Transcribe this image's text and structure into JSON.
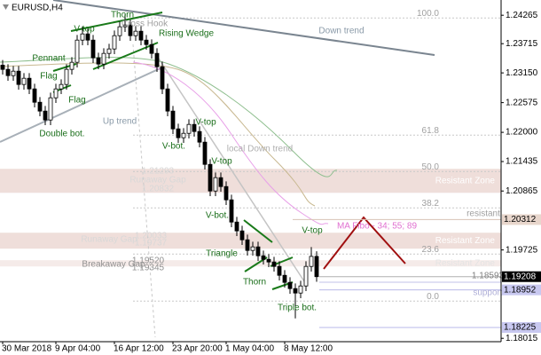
{
  "chart_data": {
    "type": "candlestick",
    "title": "EURUSD,H4",
    "categories": [
      "30 Mar 2018",
      null,
      null,
      null,
      null,
      null,
      null,
      null,
      null,
      null,
      "9 Apr 04:00",
      null,
      null,
      null,
      null,
      null,
      null,
      null,
      null,
      null,
      null,
      "16 Apr 12:00",
      null,
      null,
      null,
      null,
      null,
      null,
      null,
      null,
      null,
      null,
      "23 Apr 20:00",
      null,
      null,
      null,
      null,
      null,
      null,
      null,
      null,
      null,
      "1 May 04:00",
      null,
      null,
      null,
      null,
      null,
      null,
      null,
      null,
      null,
      null,
      "8 May 12:00",
      null,
      null,
      null,
      null,
      null,
      null
    ],
    "open": [
      1.233,
      1.23218,
      1.23097,
      1.23183,
      1.22926,
      1.23046,
      1.2284,
      1.22582,
      1.22411,
      1.22239,
      1.22668,
      1.2284,
      1.22926,
      1.23218,
      1.23355,
      1.23784,
      1.23904,
      1.23784,
      1.23441,
      1.23321,
      1.23527,
      1.23613,
      1.2387,
      1.24042,
      1.24076,
      1.2387,
      1.23956,
      1.23784,
      1.23698,
      1.23527,
      1.23269,
      1.2284,
      1.22411,
      1.22067,
      1.21896,
      1.21981,
      1.22153,
      1.22016,
      1.2181,
      1.2138,
      1.20865,
      1.21123,
      1.20951,
      1.20694,
      1.20264,
      1.20093,
      1.19921,
      1.19715,
      1.19784,
      1.19612,
      1.19543,
      1.19492,
      1.19406,
      1.19234,
      1.19097,
      1.18977,
      1.18891,
      1.19028,
      1.19406,
      1.196
    ],
    "high": [
      1.234,
      1.23318,
      1.23283,
      1.23283,
      1.23146,
      1.23146,
      1.2294,
      1.22682,
      1.22511,
      1.22768,
      1.2294,
      1.23026,
      1.23318,
      1.23455,
      1.23884,
      1.2405,
      1.24004,
      1.23884,
      1.23541,
      1.23627,
      1.23713,
      1.2397,
      1.24142,
      1.2428,
      1.24176,
      1.24056,
      1.24056,
      1.23884,
      1.23798,
      1.23627,
      1.23369,
      1.2294,
      1.22511,
      1.22167,
      1.22081,
      1.22253,
      1.22253,
      1.22116,
      1.2191,
      1.2148,
      1.21223,
      1.21223,
      1.21051,
      1.20794,
      1.20364,
      1.20193,
      1.20021,
      1.19884,
      1.19884,
      1.19712,
      1.19643,
      1.19592,
      1.19506,
      1.19334,
      1.19197,
      1.19077,
      1.19128,
      1.19506,
      1.1978,
      1.197
    ],
    "low": [
      1.23118,
      1.22997,
      1.22997,
      1.22826,
      1.22826,
      1.2274,
      1.22482,
      1.22311,
      1.22139,
      1.22139,
      1.22568,
      1.2274,
      1.22826,
      1.23118,
      1.23255,
      1.23684,
      1.23684,
      1.23341,
      1.23221,
      1.23221,
      1.23427,
      1.23513,
      1.2377,
      1.23942,
      1.2377,
      1.2377,
      1.23684,
      1.23598,
      1.23427,
      1.23169,
      1.2274,
      1.22311,
      1.21967,
      1.21796,
      1.21796,
      1.21881,
      1.21916,
      1.2171,
      1.2128,
      1.20765,
      1.20765,
      1.20851,
      1.20594,
      1.20164,
      1.19993,
      1.19821,
      1.19615,
      1.19615,
      1.19512,
      1.19443,
      1.19392,
      1.19306,
      1.19134,
      1.18997,
      1.18877,
      1.184,
      1.18791,
      1.18928,
      1.19306,
      1.19108
    ],
    "close": [
      1.23218,
      1.23097,
      1.23183,
      1.22926,
      1.23046,
      1.2284,
      1.22582,
      1.22411,
      1.22239,
      1.22668,
      1.2284,
      1.22926,
      1.23218,
      1.23355,
      1.23784,
      1.23904,
      1.23784,
      1.23441,
      1.23321,
      1.23527,
      1.23613,
      1.2387,
      1.24042,
      1.24076,
      1.2387,
      1.23956,
      1.23784,
      1.23698,
      1.23527,
      1.23269,
      1.2284,
      1.22411,
      1.22067,
      1.21896,
      1.21981,
      1.22153,
      1.22016,
      1.2181,
      1.2138,
      1.20865,
      1.21123,
      1.20951,
      1.20694,
      1.20264,
      1.20093,
      1.19921,
      1.19715,
      1.19784,
      1.19612,
      1.19543,
      1.19492,
      1.19406,
      1.19234,
      1.19097,
      1.18977,
      1.18891,
      1.19028,
      1.19406,
      1.196,
      1.19208
    ],
    "up_color": "#ffffff",
    "down_color": "#000000",
    "ylim": [
      1.1795,
      1.2456
    ],
    "yticks": [
      1.24265,
      1.23715,
      {
        "value": 1.2315,
        "label": "1.23150"
      },
      1.22575,
      {
        "value": 1.22,
        "label": "1.22000"
      },
      1.21435,
      1.20865,
      1.19725,
      1.18015
    ],
    "levels": [
      {
        "value": 1.20312,
        "line_color": "#d8c2b4",
        "label_bg": "#e8d6cc",
        "label_color": "#000000"
      },
      {
        "value": 1.19208,
        "line_color": "#b0b0b0",
        "label_bg": "#000000",
        "label_color": "#ffffff"
      },
      {
        "value": 1.18952,
        "line_color": "#b8b8e8",
        "label_bg": "#c8c8f0",
        "label_color": "#000000"
      },
      {
        "value": 1.18225,
        "line_color": "#b8b8e8",
        "label_bg": "#c8c8f0",
        "label_color": "#000000"
      }
    ],
    "zones": [
      {
        "label": "Resistant Zone",
        "low": 1.2083,
        "high": 1.21294
      },
      {
        "label": "Resistant Zone",
        "low": 1.19749,
        "high": 1.20058
      },
      {
        "label": "Resistant Zone",
        "low": 1.19406,
        "high": 1.19526
      }
    ],
    "fibo": [
      {
        "label": "100.0",
        "price": 1.24213
      },
      {
        "label": "61.8",
        "price": 1.21947
      },
      {
        "label": "50.0",
        "price": 1.21243
      },
      {
        "label": "38.2",
        "price": 1.20539
      },
      {
        "label": "23.6",
        "price": 1.19646
      },
      {
        "label": "0.0",
        "price": 1.18736
      }
    ],
    "annotations": [
      "Thorn",
      "Cross Hook",
      "V-top",
      "Rising Wedge",
      "Pennant",
      "Flag",
      "Flag",
      "Double bot.",
      "Up trend",
      "Down trend",
      "V-top",
      "V-bot.",
      "local Down trend",
      "V-top",
      "Runaway Gap",
      "1.21293",
      "1.20832",
      "V-bot.",
      "resistant",
      "MA Fibo - 34; 55; 89",
      "Runaway Gap",
      "1.20033",
      "1.19737",
      "Triangle",
      "Breakaway Gap",
      "1.19520",
      "1.19345",
      "Thorn",
      "V-top",
      "1.18593",
      "support",
      "Triple bot."
    ]
  }
}
